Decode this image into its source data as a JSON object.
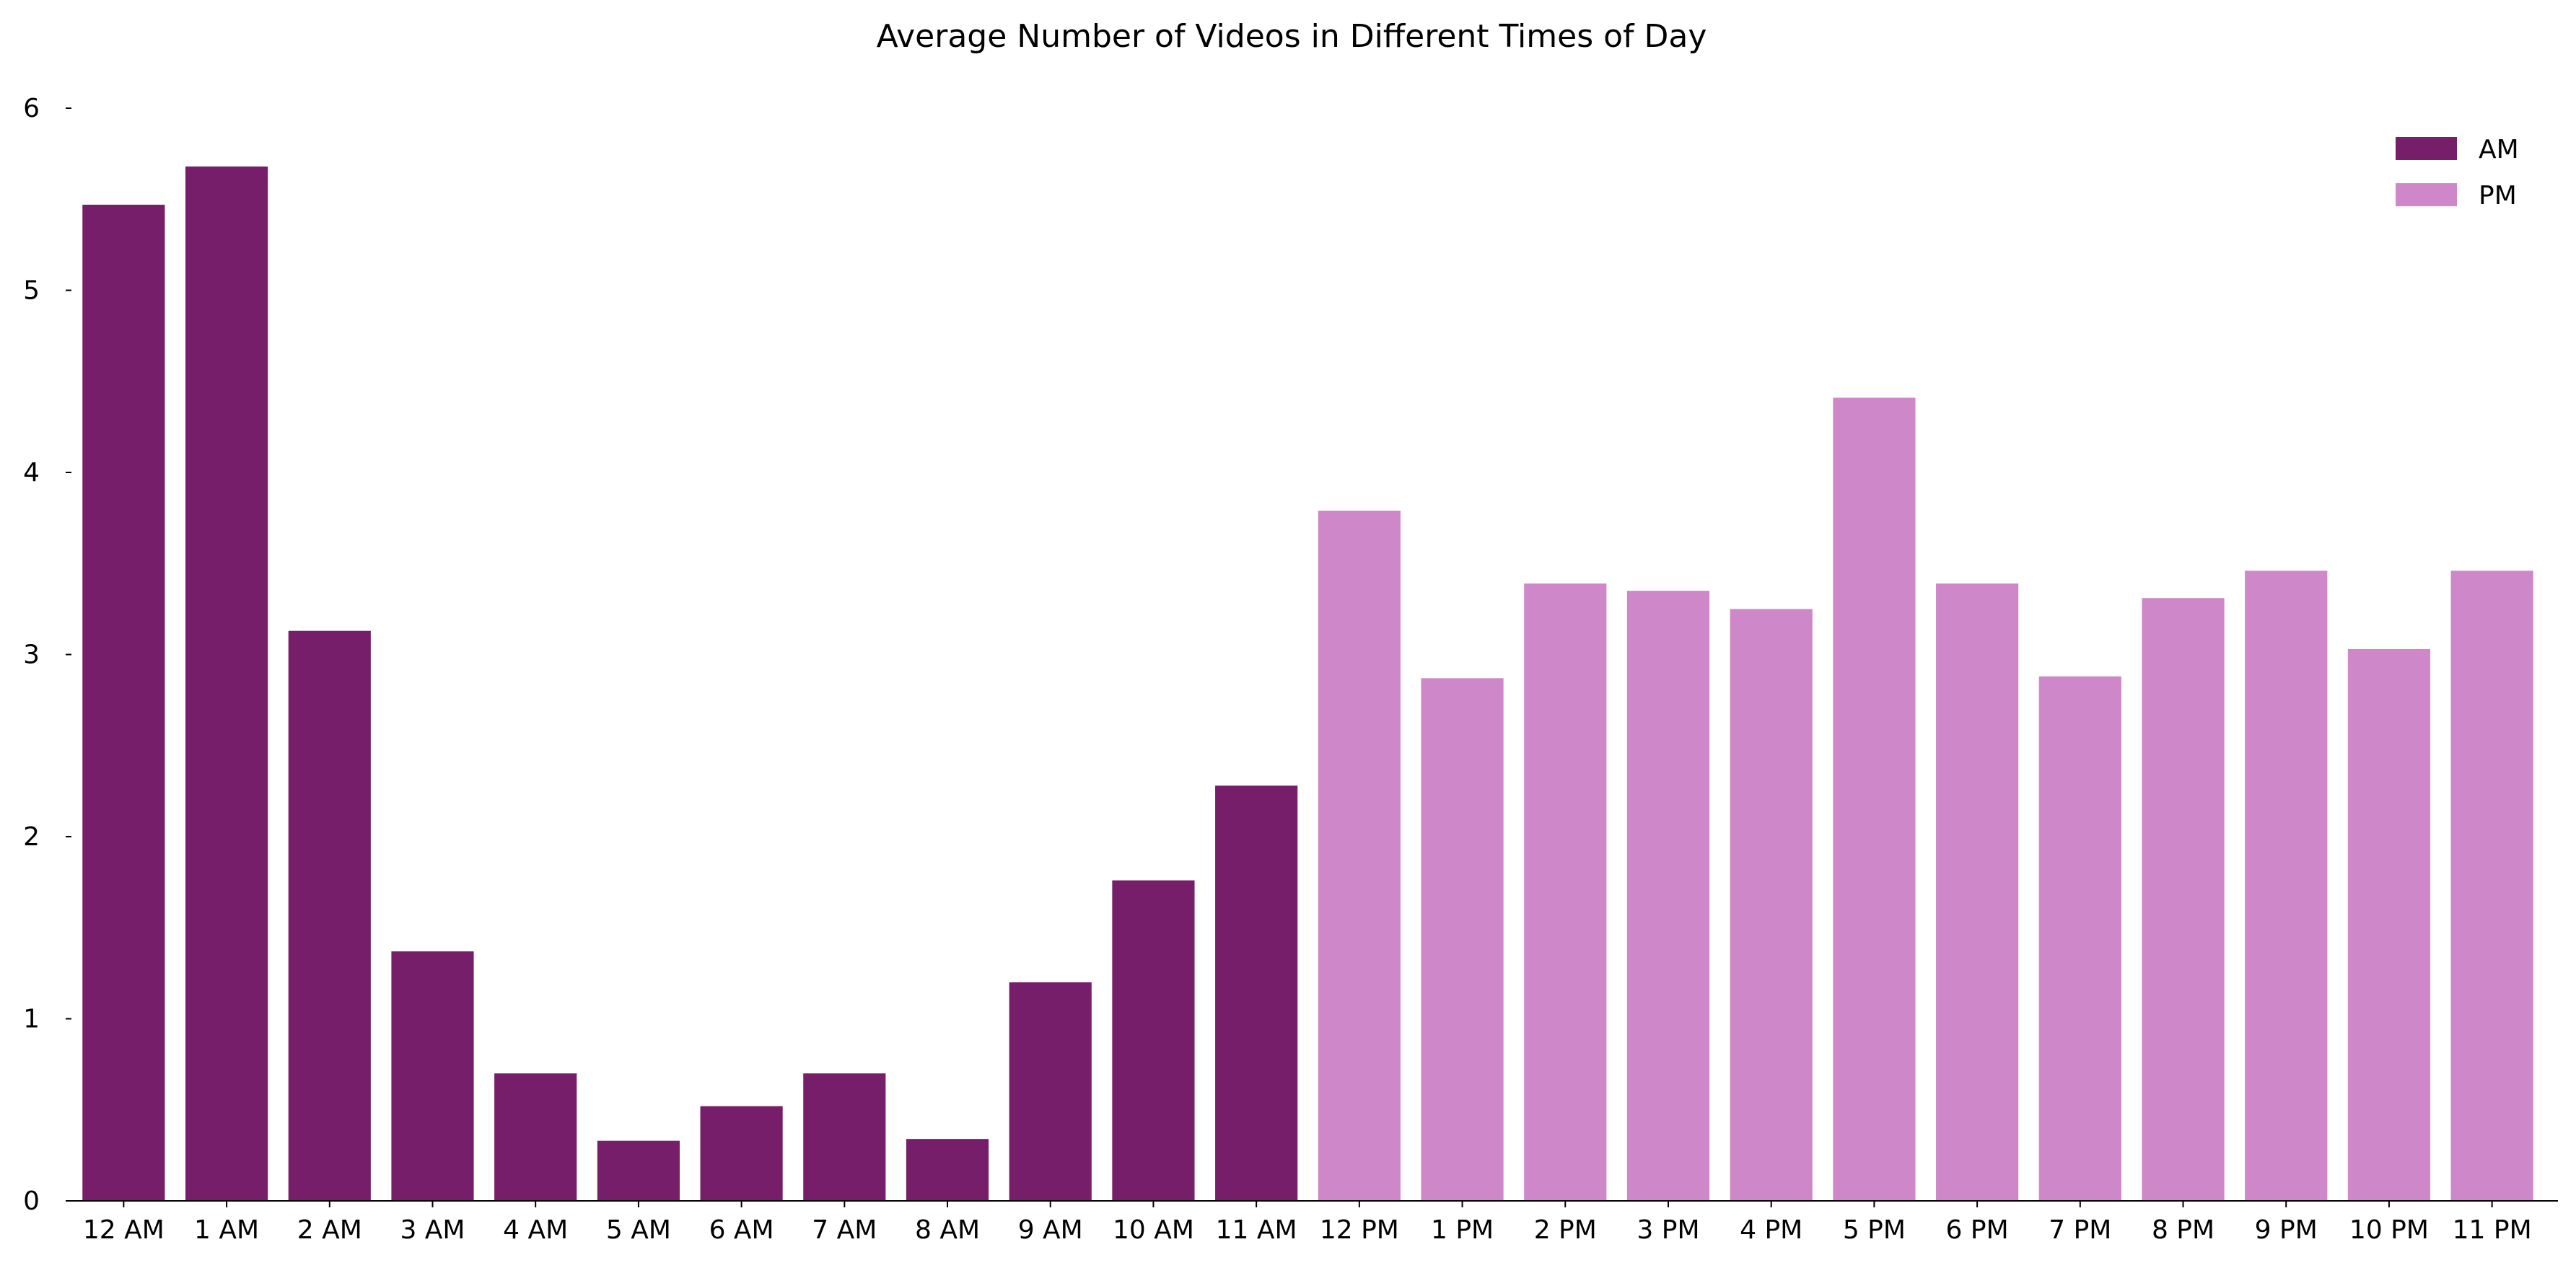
{
  "chart_data": {
    "type": "bar",
    "title": "Average Number of Videos in Different Times of Day",
    "xlabel": "",
    "ylabel": "",
    "ylim": [
      0,
      6
    ],
    "yticks": [
      0,
      1,
      2,
      3,
      4,
      5,
      6
    ],
    "grid": false,
    "legend_position": "top-right",
    "categories": [
      "12 AM",
      "1 AM",
      "2 AM",
      "3 AM",
      "4 AM",
      "5 AM",
      "6 AM",
      "7 AM",
      "8 AM",
      "9 AM",
      "10 AM",
      "11 AM",
      "12 PM",
      "1 PM",
      "2 PM",
      "3 PM",
      "4 PM",
      "5 PM",
      "6 PM",
      "7 PM",
      "8 PM",
      "9 PM",
      "10 PM",
      "11 PM"
    ],
    "series": [
      {
        "name": "AM",
        "color": "#771e6b",
        "values": [
          5.47,
          5.68,
          3.13,
          1.37,
          0.7,
          0.33,
          0.52,
          0.7,
          0.34,
          1.2,
          1.76,
          2.28,
          null,
          null,
          null,
          null,
          null,
          null,
          null,
          null,
          null,
          null,
          null,
          null
        ]
      },
      {
        "name": "PM",
        "color": "#ce88c9",
        "values": [
          null,
          null,
          null,
          null,
          null,
          null,
          null,
          null,
          null,
          null,
          null,
          null,
          3.79,
          2.87,
          3.39,
          3.35,
          3.25,
          4.41,
          3.39,
          2.88,
          3.31,
          3.46,
          3.03,
          3.46
        ]
      }
    ]
  }
}
